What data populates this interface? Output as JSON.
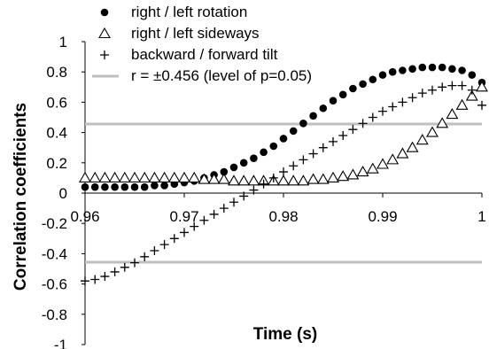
{
  "chart_data": {
    "type": "scatter",
    "title": "",
    "xlabel": "Time (s)",
    "ylabel": "Correlation coefficients",
    "xlim": [
      0.96,
      1.0
    ],
    "ylim": [
      -1,
      1
    ],
    "x_ticks": [
      "0.96",
      "0.97",
      "0.98",
      "0.99",
      "1"
    ],
    "y_ticks": [
      "1",
      "0.8",
      "0.6",
      "0.4",
      "0.2",
      "0",
      "-0.2",
      "-0.4",
      "-0.6",
      "-0.8",
      "-1"
    ],
    "legend_position": "top-left",
    "grid": false,
    "series": [
      {
        "name": "right / left rotation",
        "marker": "filled-circle",
        "color": "#000000",
        "x": [
          0.96,
          0.961,
          0.962,
          0.963,
          0.964,
          0.965,
          0.966,
          0.967,
          0.968,
          0.969,
          0.97,
          0.971,
          0.972,
          0.973,
          0.974,
          0.975,
          0.976,
          0.977,
          0.978,
          0.979,
          0.98,
          0.981,
          0.982,
          0.983,
          0.984,
          0.985,
          0.986,
          0.987,
          0.988,
          0.989,
          0.99,
          0.991,
          0.992,
          0.993,
          0.994,
          0.995,
          0.996,
          0.997,
          0.998,
          0.999,
          1.0
        ],
        "y": [
          0.04,
          0.04,
          0.04,
          0.04,
          0.04,
          0.04,
          0.04,
          0.05,
          0.05,
          0.06,
          0.07,
          0.08,
          0.1,
          0.12,
          0.14,
          0.17,
          0.2,
          0.23,
          0.27,
          0.31,
          0.36,
          0.41,
          0.46,
          0.51,
          0.56,
          0.61,
          0.65,
          0.69,
          0.72,
          0.75,
          0.78,
          0.8,
          0.81,
          0.82,
          0.83,
          0.83,
          0.83,
          0.82,
          0.81,
          0.78,
          0.73
        ]
      },
      {
        "name": "right / left sideways",
        "marker": "open-triangle",
        "color": "#000000",
        "x": [
          0.96,
          0.961,
          0.962,
          0.963,
          0.964,
          0.965,
          0.966,
          0.967,
          0.968,
          0.969,
          0.97,
          0.971,
          0.972,
          0.973,
          0.974,
          0.975,
          0.976,
          0.977,
          0.978,
          0.979,
          0.98,
          0.981,
          0.982,
          0.983,
          0.984,
          0.985,
          0.986,
          0.987,
          0.988,
          0.989,
          0.99,
          0.991,
          0.992,
          0.993,
          0.994,
          0.995,
          0.996,
          0.997,
          0.998,
          0.999,
          1.0
        ],
        "y": [
          0.1,
          0.1,
          0.1,
          0.1,
          0.1,
          0.1,
          0.1,
          0.1,
          0.1,
          0.1,
          0.1,
          0.1,
          0.09,
          0.09,
          0.09,
          0.08,
          0.08,
          0.08,
          0.08,
          0.08,
          0.08,
          0.08,
          0.08,
          0.09,
          0.09,
          0.1,
          0.11,
          0.12,
          0.14,
          0.16,
          0.19,
          0.22,
          0.26,
          0.3,
          0.35,
          0.4,
          0.46,
          0.52,
          0.58,
          0.64,
          0.7
        ]
      },
      {
        "name": "backward / forward tilt",
        "marker": "plus",
        "color": "#000000",
        "x": [
          0.96,
          0.961,
          0.962,
          0.963,
          0.964,
          0.965,
          0.966,
          0.967,
          0.968,
          0.969,
          0.97,
          0.971,
          0.972,
          0.973,
          0.974,
          0.975,
          0.976,
          0.977,
          0.978,
          0.979,
          0.98,
          0.981,
          0.982,
          0.983,
          0.984,
          0.985,
          0.986,
          0.987,
          0.988,
          0.989,
          0.99,
          0.991,
          0.992,
          0.993,
          0.994,
          0.995,
          0.996,
          0.997,
          0.998,
          0.999,
          1.0
        ],
        "y": [
          -0.58,
          -0.57,
          -0.55,
          -0.52,
          -0.49,
          -0.46,
          -0.42,
          -0.38,
          -0.34,
          -0.3,
          -0.26,
          -0.22,
          -0.18,
          -0.14,
          -0.1,
          -0.06,
          -0.02,
          0.02,
          0.06,
          0.1,
          0.14,
          0.18,
          0.22,
          0.26,
          0.3,
          0.34,
          0.38,
          0.42,
          0.46,
          0.5,
          0.54,
          0.57,
          0.6,
          0.63,
          0.66,
          0.68,
          0.7,
          0.71,
          0.71,
          0.68,
          0.58
        ]
      }
    ],
    "reference_lines": {
      "label": "r = ±0.456 (level of p=0.05)",
      "values": [
        0.456,
        -0.456
      ],
      "color": "#bfbfbf"
    }
  }
}
